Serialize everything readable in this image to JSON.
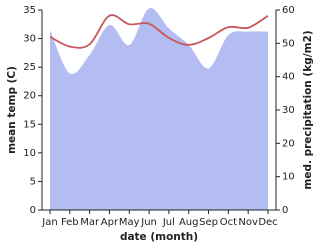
{
  "chart_data": {
    "type": "line-area",
    "x_label": "date (month)",
    "y_label": "mean temp (C)",
    "y2_label": "med. precipitation (kg/m2)",
    "categories": [
      "Jan",
      "Feb",
      "Mar",
      "Apr",
      "May",
      "Jun",
      "Jul",
      "Aug",
      "Sep",
      "Oct",
      "Nov",
      "Dec"
    ],
    "ylim": [
      0,
      35
    ],
    "yticks": [
      0,
      5,
      10,
      15,
      20,
      25,
      30,
      35
    ],
    "y2lim": [
      0,
      60
    ],
    "y2ticks": [
      0,
      10,
      20,
      30,
      40,
      50,
      60
    ],
    "series": [
      {
        "name": "med. precipitation (kg/m2)",
        "axis": "y2",
        "color": "#b3bdf2",
        "values": [
          54,
          41,
          46.5,
          55.5,
          49.5,
          60.5,
          54.5,
          49.5,
          42.5,
          52.5,
          53.5,
          53.5
        ]
      },
      {
        "name": "mean temp (C)",
        "axis": "y",
        "color": "#c8575a",
        "values": [
          30.3,
          28.6,
          29,
          34,
          32.5,
          32.6,
          30.1,
          28.9,
          30.1,
          32,
          31.9,
          34
        ]
      }
    ]
  }
}
